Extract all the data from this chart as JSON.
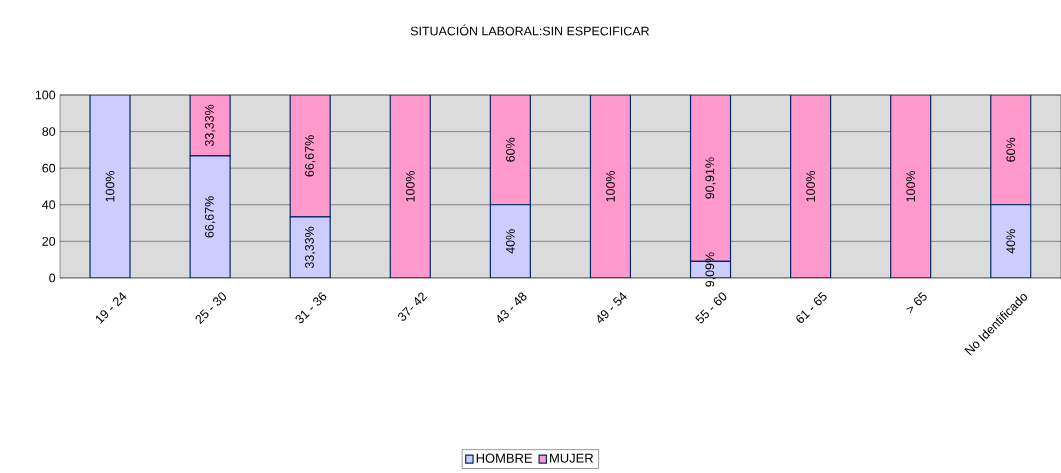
{
  "chart_data": {
    "type": "bar",
    "title": "SITUACIÓN LABORAL:SIN ESPECIFICAR",
    "categories": [
      "19 - 24",
      "25 - 30",
      "31 - 36",
      "37- 42",
      "43 - 48",
      "49 - 54",
      "55 - 60",
      "61 - 65",
      "> 65",
      "No Identificado"
    ],
    "stacked": true,
    "series": [
      {
        "name": "HOMBRE",
        "color": "#ccccff",
        "values": [
          100,
          66.67,
          33.33,
          0,
          40,
          0,
          9.09,
          0,
          0,
          40
        ],
        "value_labels": [
          "100%",
          "66,67%",
          "33,33%",
          null,
          "40%",
          null,
          "9,09%",
          null,
          null,
          "40%"
        ]
      },
      {
        "name": "MUJER",
        "color": "#ff99cc",
        "values": [
          0,
          33.33,
          66.67,
          100,
          60,
          100,
          90.91,
          100,
          100,
          60
        ],
        "value_labels": [
          null,
          "33,33%",
          "66,67%",
          "100%",
          "60%",
          "100%",
          "90,91%",
          "100%",
          "100%",
          "60%"
        ]
      }
    ],
    "ylim": [
      0,
      100
    ],
    "yticks": [
      0,
      20,
      40,
      60,
      80,
      100
    ],
    "grid": "y",
    "legend": "bottom"
  }
}
